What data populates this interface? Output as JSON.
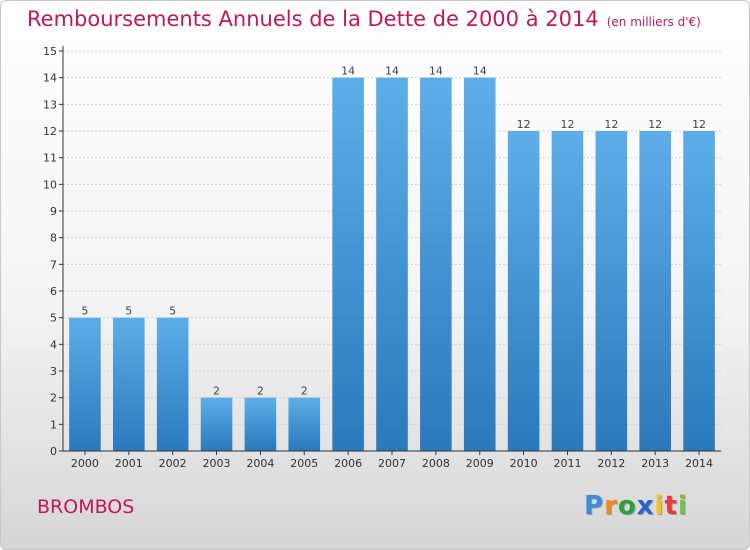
{
  "title": "Remboursements Annuels de la Dette de 2000 à 2014",
  "subtitle": "(en milliers d'€)",
  "commune": "BROMBOS",
  "logo": {
    "text": "Proxiti",
    "parts": [
      "P",
      "r",
      "o",
      "x",
      "i",
      "t",
      "i"
    ]
  },
  "colors": {
    "title": "#c2185b",
    "bar_light": "#5daee8",
    "bar_dark": "#2a79bd",
    "grid": "#d0d0d0",
    "axis": "#333333"
  },
  "chart_data": {
    "type": "bar",
    "title": "Remboursements Annuels de la Dette de 2000 à 2014",
    "subtitle": "(en milliers d'€)",
    "categories": [
      "2000",
      "2001",
      "2002",
      "2003",
      "2004",
      "2005",
      "2006",
      "2007",
      "2008",
      "2009",
      "2010",
      "2011",
      "2012",
      "2013",
      "2014"
    ],
    "values": [
      5,
      5,
      5,
      2,
      2,
      2,
      14,
      14,
      14,
      14,
      12,
      12,
      12,
      12,
      12
    ],
    "data_labels": [
      "5",
      "5",
      "5",
      "2",
      "2",
      "2",
      "14",
      "14",
      "14",
      "14",
      "12",
      "12",
      "12",
      "12",
      "12"
    ],
    "yticks": [
      0,
      1,
      2,
      3,
      4,
      5,
      6,
      7,
      8,
      9,
      10,
      11,
      12,
      13,
      14,
      15
    ],
    "ylim": [
      0,
      15
    ],
    "grid": true,
    "legend": "none"
  }
}
